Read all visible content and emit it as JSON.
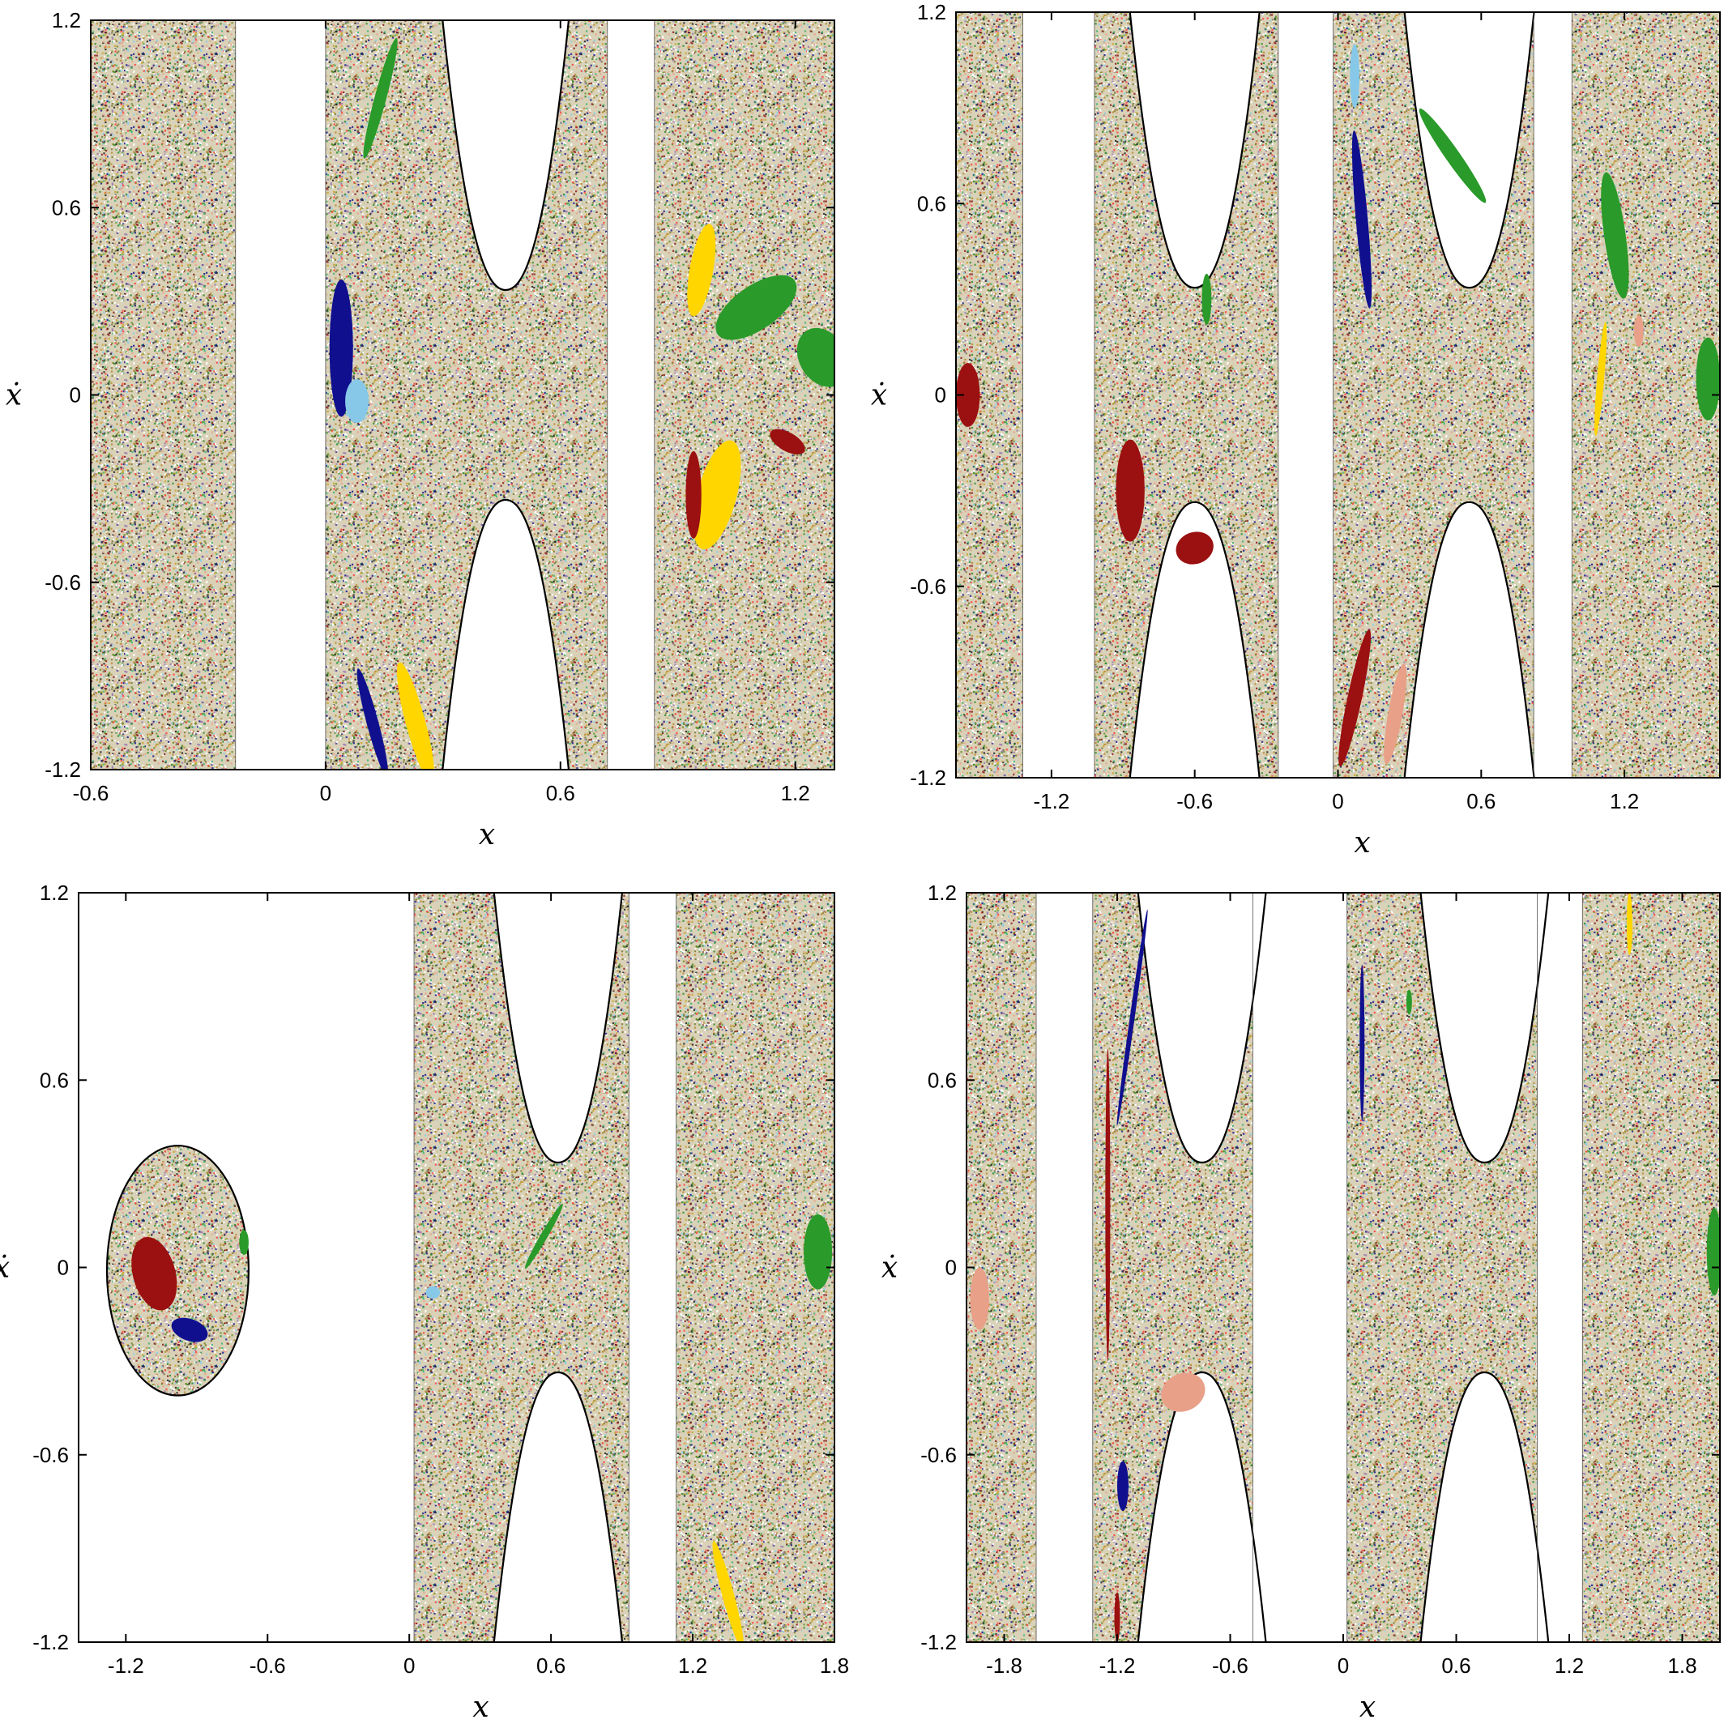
{
  "colors": {
    "chaos_palette": [
      "#b58a2e",
      "#7a7a3a",
      "#c9a227",
      "#2e8b2e",
      "#1a1a8c",
      "#8b1a1a",
      "#87ceeb",
      "#e8a08a",
      "#222222",
      "#9a7ab0",
      "#6b8e23",
      "#d2b48c",
      "#ff4040",
      "#3cb371"
    ],
    "island_red": "#9b1010",
    "island_green": "#2a9a2a",
    "island_blue": "#10108f",
    "island_yellow": "#ffd600",
    "island_lightblue": "#87c8e8",
    "island_salmon": "#e8a088",
    "boundary": "#000000"
  },
  "chart_data": [
    {
      "type": "scatter",
      "title": "",
      "xlabel": "x",
      "ylabel": "ẋ",
      "xlim": [
        -0.6,
        1.3
      ],
      "ylim": [
        -1.2,
        1.2
      ],
      "xticks": [
        "-0.6",
        "0",
        "0.6",
        "1.2"
      ],
      "yticks": [
        "-1.2",
        "-0.6",
        "0",
        "0.6",
        "1.2"
      ],
      "xtick_values": [
        -0.6,
        0,
        0.6,
        1.2
      ],
      "ytick_values": [
        -1.2,
        -0.6,
        0,
        0.6,
        1.2
      ],
      "bands": [
        [
          -0.6,
          -0.23
        ],
        [
          0,
          0.72
        ],
        [
          0.84,
          1.3
        ]
      ],
      "saddle_x": [
        0.46
      ],
      "islands": [
        {
          "color": "island_blue",
          "cx": 0.04,
          "cy": 0.15,
          "rx": 0.03,
          "ry": 0.22,
          "rot": 0
        },
        {
          "color": "island_lightblue",
          "cx": 0.08,
          "cy": -0.02,
          "rx": 0.03,
          "ry": 0.07,
          "rot": 0
        },
        {
          "color": "island_green",
          "cx": 1.1,
          "cy": 0.28,
          "rx": 0.12,
          "ry": 0.07,
          "rot": -35
        },
        {
          "color": "island_yellow",
          "cx": 0.96,
          "cy": 0.4,
          "rx": 0.03,
          "ry": 0.15,
          "rot": 10
        },
        {
          "color": "island_yellow",
          "cx": 1.0,
          "cy": -0.32,
          "rx": 0.05,
          "ry": 0.18,
          "rot": 15
        },
        {
          "color": "island_red",
          "cx": 0.94,
          "cy": -0.32,
          "rx": 0.02,
          "ry": 0.14,
          "rot": 0
        },
        {
          "color": "island_red",
          "cx": 1.18,
          "cy": -0.15,
          "rx": 0.05,
          "ry": 0.03,
          "rot": 30
        },
        {
          "color": "island_green",
          "cx": 1.27,
          "cy": 0.12,
          "rx": 0.06,
          "ry": 0.1,
          "rot": -30
        },
        {
          "color": "island_yellow",
          "cx": 0.23,
          "cy": -1.05,
          "rx": 0.025,
          "ry": 0.2,
          "rot": -15
        },
        {
          "color": "island_blue",
          "cx": 0.12,
          "cy": -1.05,
          "rx": 0.015,
          "ry": 0.18,
          "rot": -15
        },
        {
          "color": "island_green",
          "cx": 0.14,
          "cy": 0.95,
          "rx": 0.015,
          "ry": 0.2,
          "rot": 15
        }
      ]
    },
    {
      "type": "scatter",
      "title": "",
      "xlabel": "x",
      "ylabel": "ẋ",
      "xlim": [
        -1.6,
        1.6
      ],
      "ylim": [
        -1.2,
        1.2
      ],
      "xticks": [
        "-1.2",
        "-0.6",
        "0",
        "0.6",
        "1.2"
      ],
      "yticks": [
        "-1.2",
        "-0.6",
        "0",
        "0.6",
        "1.2"
      ],
      "xtick_values": [
        -1.2,
        -0.6,
        0,
        0.6,
        1.2
      ],
      "ytick_values": [
        -1.2,
        -0.6,
        0,
        0.6,
        1.2
      ],
      "bands": [
        [
          -1.6,
          -1.32
        ],
        [
          -1.02,
          -0.25
        ],
        [
          -0.02,
          0.82
        ],
        [
          0.98,
          1.6
        ]
      ],
      "saddle_x": [
        -0.6,
        0.55
      ],
      "islands": [
        {
          "color": "island_red",
          "cx": -0.87,
          "cy": -0.3,
          "rx": 0.06,
          "ry": 0.16,
          "rot": 0
        },
        {
          "color": "island_red",
          "cx": -0.6,
          "cy": -0.48,
          "rx": 0.08,
          "ry": 0.05,
          "rot": -20
        },
        {
          "color": "island_red",
          "cx": -1.55,
          "cy": 0.0,
          "rx": 0.05,
          "ry": 0.1,
          "rot": 0
        },
        {
          "color": "island_blue",
          "cx": 0.1,
          "cy": 0.55,
          "rx": 0.025,
          "ry": 0.28,
          "rot": -5
        },
        {
          "color": "island_green",
          "cx": 1.16,
          "cy": 0.5,
          "rx": 0.045,
          "ry": 0.2,
          "rot": -8
        },
        {
          "color": "island_green",
          "cx": 1.55,
          "cy": 0.05,
          "rx": 0.05,
          "ry": 0.13,
          "rot": 0
        },
        {
          "color": "island_green",
          "cx": -0.55,
          "cy": 0.3,
          "rx": 0.02,
          "ry": 0.08,
          "rot": 0
        },
        {
          "color": "island_red",
          "cx": 0.07,
          "cy": -0.95,
          "rx": 0.03,
          "ry": 0.22,
          "rot": 12
        },
        {
          "color": "island_salmon",
          "cx": 0.24,
          "cy": -1.0,
          "rx": 0.03,
          "ry": 0.16,
          "rot": 10
        },
        {
          "color": "island_lightblue",
          "cx": 0.07,
          "cy": 1.0,
          "rx": 0.02,
          "ry": 0.1,
          "rot": 0
        },
        {
          "color": "island_green",
          "cx": 0.48,
          "cy": 0.75,
          "rx": 0.03,
          "ry": 0.18,
          "rot": -35
        },
        {
          "color": "island_yellow",
          "cx": 1.1,
          "cy": 0.05,
          "rx": 0.015,
          "ry": 0.18,
          "rot": 5
        },
        {
          "color": "island_salmon",
          "cx": 1.26,
          "cy": 0.2,
          "rx": 0.02,
          "ry": 0.05,
          "rot": 0
        }
      ]
    },
    {
      "type": "scatter",
      "title": "",
      "xlabel": "x",
      "ylabel": "ẋ",
      "xlim": [
        -1.4,
        1.8
      ],
      "ylim": [
        -1.2,
        1.2
      ],
      "xticks": [
        "-1.2",
        "-0.6",
        "0",
        "0.6",
        "1.2",
        "1.8"
      ],
      "yticks": [
        "-1.2",
        "-0.6",
        "0",
        "0.6",
        "1.2"
      ],
      "xtick_values": [
        -1.2,
        -0.6,
        0,
        0.6,
        1.2,
        1.8
      ],
      "ytick_values": [
        -1.2,
        -0.6,
        0,
        0.6,
        1.2
      ],
      "bands": [
        [
          0.02,
          0.93
        ],
        [
          1.13,
          1.8
        ]
      ],
      "saddle_x": [
        0.63
      ],
      "islands": [
        {
          "color": "island_red",
          "cx": -1.08,
          "cy": -0.02,
          "rx": 0.09,
          "ry": 0.12,
          "rot": -15
        },
        {
          "color": "island_blue",
          "cx": -0.93,
          "cy": -0.2,
          "rx": 0.08,
          "ry": 0.035,
          "rot": 20
        },
        {
          "color": "island_green",
          "cx": 1.73,
          "cy": 0.05,
          "rx": 0.06,
          "ry": 0.12,
          "rot": 0
        },
        {
          "color": "island_yellow",
          "cx": 1.35,
          "cy": -1.05,
          "rx": 0.025,
          "ry": 0.18,
          "rot": -15
        },
        {
          "color": "island_green",
          "cx": 0.57,
          "cy": 0.1,
          "rx": 0.015,
          "ry": 0.12,
          "rot": 30
        },
        {
          "color": "island_lightblue",
          "cx": 0.1,
          "cy": -0.08,
          "rx": 0.03,
          "ry": 0.02,
          "rot": 0
        },
        {
          "color": "island_green",
          "cx": -0.7,
          "cy": 0.08,
          "rx": 0.02,
          "ry": 0.04,
          "rot": 0
        }
      ],
      "pocket": {
        "cx": -0.98,
        "cy": -0.01,
        "rx": 0.3,
        "ry": 0.4
      }
    },
    {
      "type": "scatter",
      "title": "",
      "xlabel": "x",
      "ylabel": "ẋ",
      "xlim": [
        -2.0,
        2.0
      ],
      "ylim": [
        -1.2,
        1.2
      ],
      "xticks": [
        "-1.8",
        "-1.2",
        "-0.6",
        "0",
        "0.6",
        "1.2",
        "1.8"
      ],
      "yticks": [
        "-1.2",
        "-0.6",
        "0",
        "0.6",
        "1.2"
      ],
      "xtick_values": [
        -1.8,
        -1.2,
        -0.6,
        0,
        0.6,
        1.2,
        1.8
      ],
      "ytick_values": [
        -1.2,
        -0.6,
        0,
        0.6,
        1.2
      ],
      "bands": [
        [
          -2.0,
          -1.63
        ],
        [
          -1.33,
          -0.48
        ],
        [
          0.02,
          1.03
        ],
        [
          1.27,
          2.0
        ]
      ],
      "saddle_x": [
        -0.75,
        0.75
      ],
      "islands": [
        {
          "color": "island_salmon",
          "cx": -1.93,
          "cy": -0.1,
          "rx": 0.05,
          "ry": 0.1,
          "rot": 0
        },
        {
          "color": "island_salmon",
          "cx": -0.85,
          "cy": -0.4,
          "rx": 0.12,
          "ry": 0.06,
          "rot": -25
        },
        {
          "color": "island_red",
          "cx": -1.25,
          "cy": 0.2,
          "rx": 0.012,
          "ry": 0.5,
          "rot": 0
        },
        {
          "color": "island_blue",
          "cx": -1.17,
          "cy": -0.7,
          "rx": 0.03,
          "ry": 0.08,
          "rot": 0
        },
        {
          "color": "island_blue",
          "cx": -1.12,
          "cy": 0.8,
          "rx": 0.012,
          "ry": 0.35,
          "rot": 8
        },
        {
          "color": "island_blue",
          "cx": 0.1,
          "cy": 0.72,
          "rx": 0.012,
          "ry": 0.25,
          "rot": 0
        },
        {
          "color": "island_green",
          "cx": 1.97,
          "cy": 0.05,
          "rx": 0.04,
          "ry": 0.14,
          "rot": 0
        },
        {
          "color": "island_yellow",
          "cx": 1.52,
          "cy": 1.1,
          "rx": 0.015,
          "ry": 0.1,
          "rot": 0
        },
        {
          "color": "island_red",
          "cx": -1.2,
          "cy": -1.12,
          "rx": 0.015,
          "ry": 0.08,
          "rot": 0
        },
        {
          "color": "island_green",
          "cx": 0.35,
          "cy": 0.85,
          "rx": 0.015,
          "ry": 0.04,
          "rot": 0
        }
      ]
    }
  ]
}
